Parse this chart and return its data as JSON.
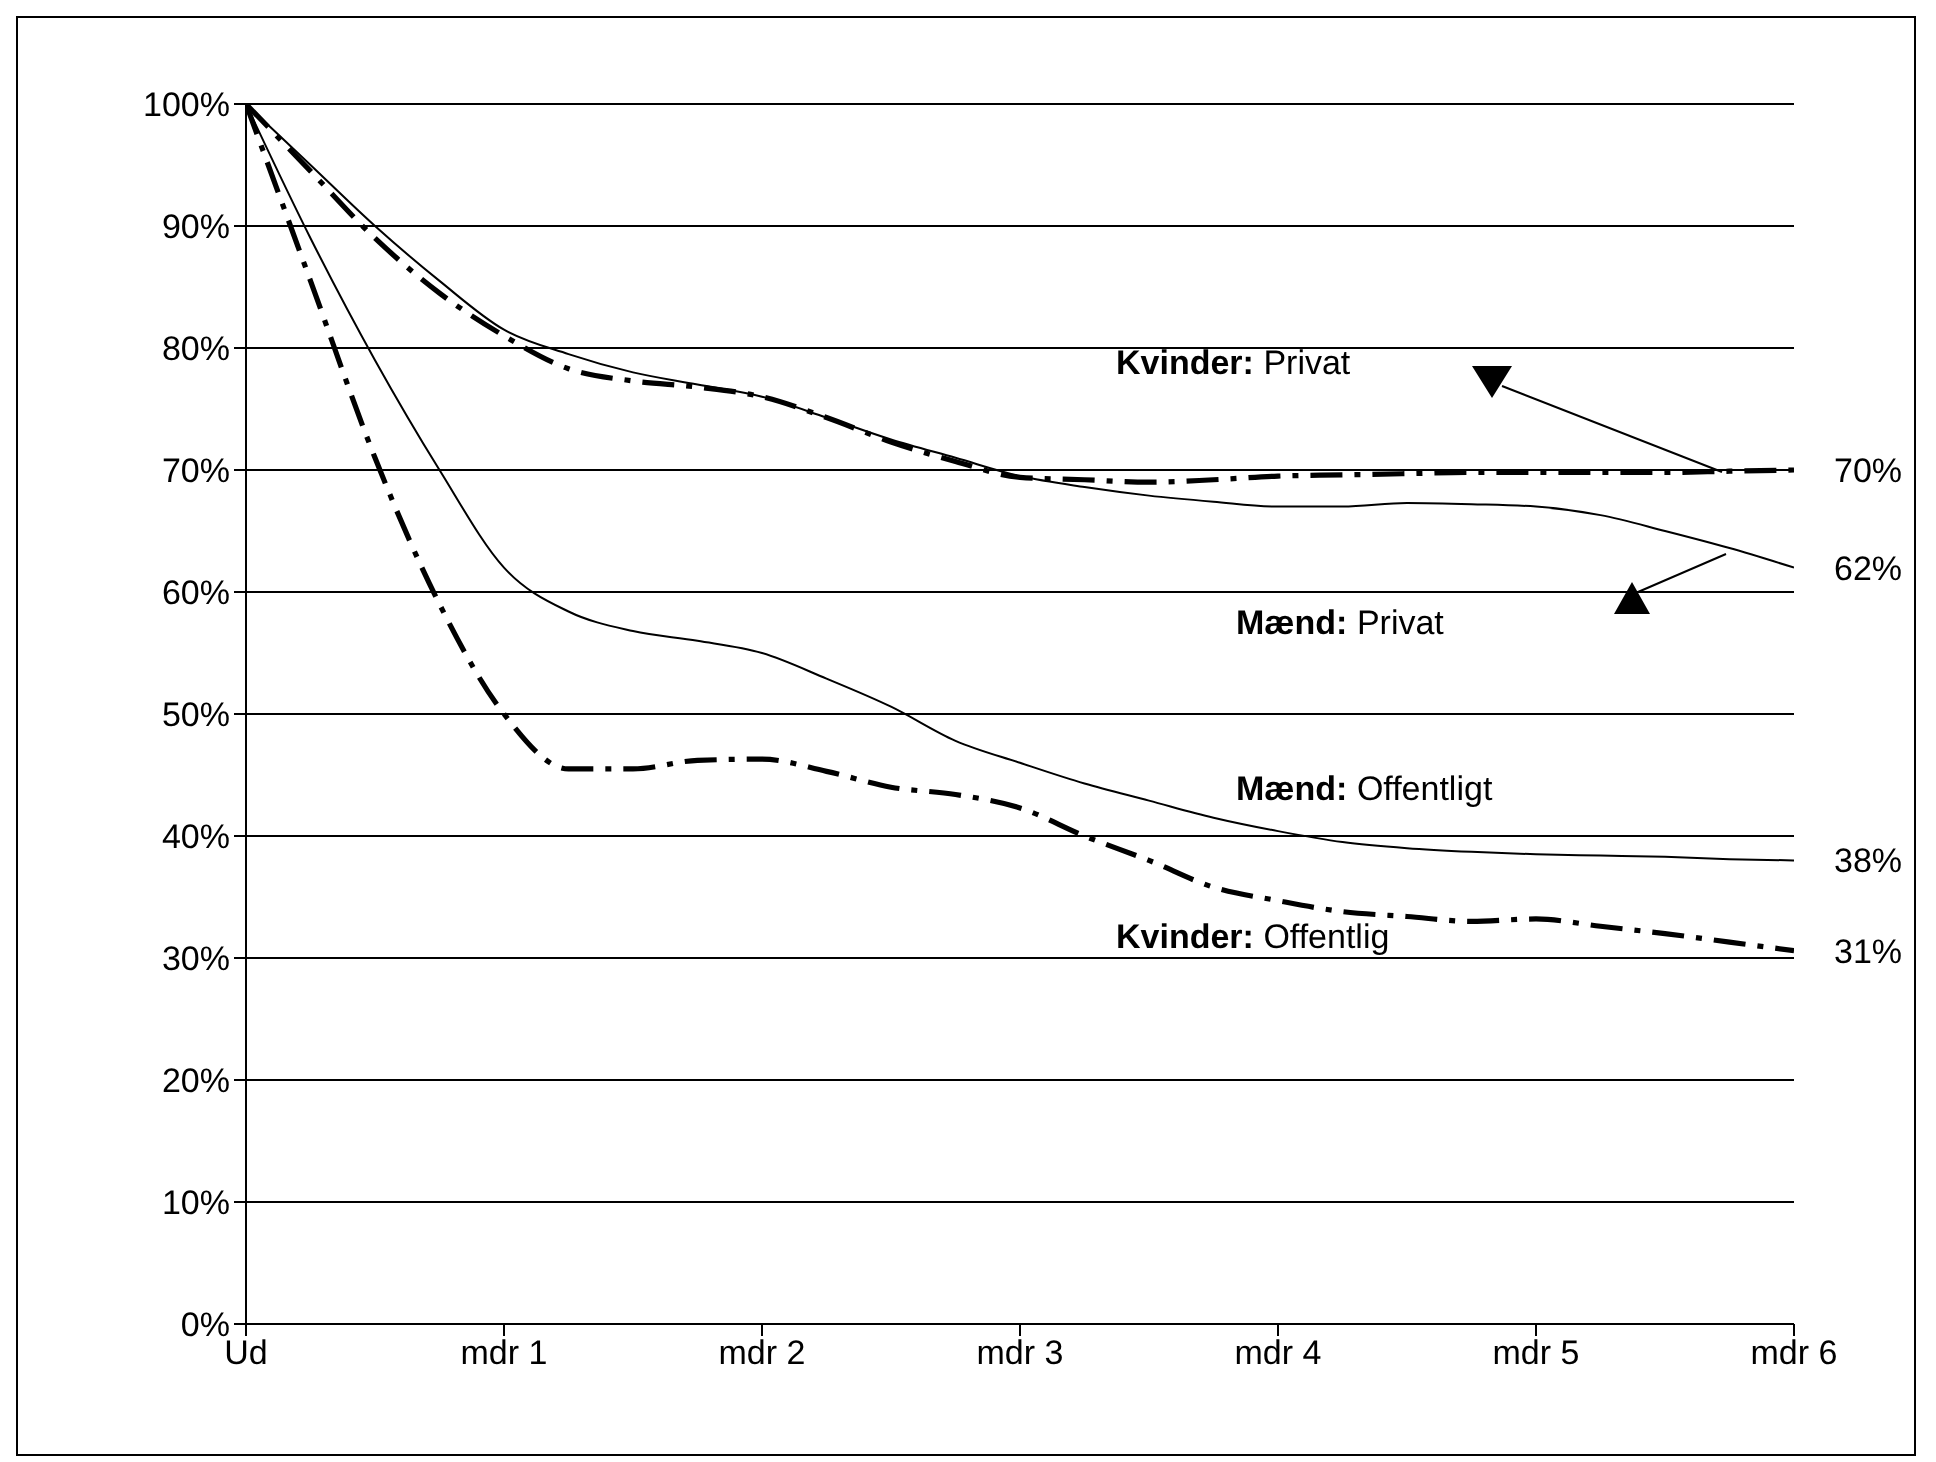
{
  "chart_data": {
    "type": "line",
    "categories": [
      "Ud",
      null,
      null,
      null,
      "mdr 1",
      null,
      null,
      null,
      "mdr 2",
      null,
      null,
      null,
      "mdr 3",
      null,
      null,
      null,
      "mdr 4",
      null,
      null,
      null,
      "mdr 5",
      null,
      null,
      null,
      "mdr 6"
    ],
    "ylim": [
      0,
      100
    ],
    "yticks": [
      {
        "value": 0,
        "label": "0%"
      },
      {
        "value": 10,
        "label": "10%"
      },
      {
        "value": 20,
        "label": "20%"
      },
      {
        "value": 30,
        "label": "30%"
      },
      {
        "value": 40,
        "label": "40%"
      },
      {
        "value": 50,
        "label": "50%"
      },
      {
        "value": 60,
        "label": "60%"
      },
      {
        "value": 70,
        "label": "70%"
      },
      {
        "value": 80,
        "label": "80%"
      },
      {
        "value": 90,
        "label": "90%"
      },
      {
        "value": 100,
        "label": "100%"
      }
    ],
    "grid": "y",
    "series": [
      {
        "name": "Kvinder: Privat",
        "color": "#000000",
        "line_style": "dashed",
        "values": [
          100,
          94.5,
          89,
          84.5,
          81,
          78.3,
          77.3,
          76.8,
          76,
          74.3,
          72.3,
          70.7,
          69.4,
          69.2,
          69,
          69.2,
          69.5,
          69.6,
          69.7,
          69.8,
          69.8,
          69.8,
          69.8,
          69.9,
          70
        ],
        "value_labels": [
          null,
          null,
          null,
          null,
          null,
          null,
          null,
          null,
          null,
          null,
          null,
          null,
          null,
          null,
          null,
          null,
          null,
          null,
          null,
          null,
          null,
          null,
          null,
          null,
          "70%"
        ]
      },
      {
        "name": "Mænd: Privat",
        "color": "#000000",
        "line_style": "solid",
        "values": [
          100,
          95,
          90,
          85.5,
          81.5,
          79.5,
          78,
          77,
          76,
          74.3,
          72.5,
          71,
          69.5,
          68.6,
          67.9,
          67.4,
          67,
          67,
          67.3,
          67.2,
          67,
          66.3,
          65,
          63.6,
          62
        ],
        "value_labels": [
          null,
          null,
          null,
          null,
          null,
          null,
          null,
          null,
          null,
          null,
          null,
          null,
          null,
          null,
          null,
          null,
          null,
          null,
          null,
          null,
          null,
          null,
          null,
          null,
          "62%"
        ]
      },
      {
        "name": "Mænd: Offentligt",
        "color": "#000000",
        "line_style": "solid",
        "values": [
          100,
          89,
          79,
          70,
          62,
          58.4,
          56.8,
          56,
          55,
          52.9,
          50.6,
          47.8,
          46,
          44.3,
          42.9,
          41.5,
          40.4,
          39.5,
          39,
          38.7,
          38.5,
          38.4,
          38.3,
          38.1,
          38
        ],
        "value_labels": [
          null,
          null,
          null,
          null,
          null,
          null,
          null,
          null,
          null,
          null,
          null,
          null,
          null,
          null,
          null,
          null,
          null,
          null,
          null,
          null,
          null,
          null,
          null,
          null,
          "38%"
        ]
      },
      {
        "name": "Kvinder: Offentlig",
        "color": "#000000",
        "line_style": "dashed",
        "values": [
          100,
          85.5,
          71,
          59,
          50,
          45.5,
          45.5,
          46.2,
          46.3,
          45.3,
          44,
          43.4,
          42.3,
          40,
          38,
          35.8,
          34.7,
          33.8,
          33.4,
          33,
          33.2,
          32.6,
          32,
          31.3,
          30.6
        ],
        "value_labels": [
          null,
          null,
          null,
          null,
          null,
          null,
          null,
          null,
          null,
          null,
          null,
          null,
          null,
          null,
          null,
          null,
          null,
          null,
          null,
          null,
          null,
          null,
          null,
          null,
          "31%"
        ]
      }
    ]
  }
}
